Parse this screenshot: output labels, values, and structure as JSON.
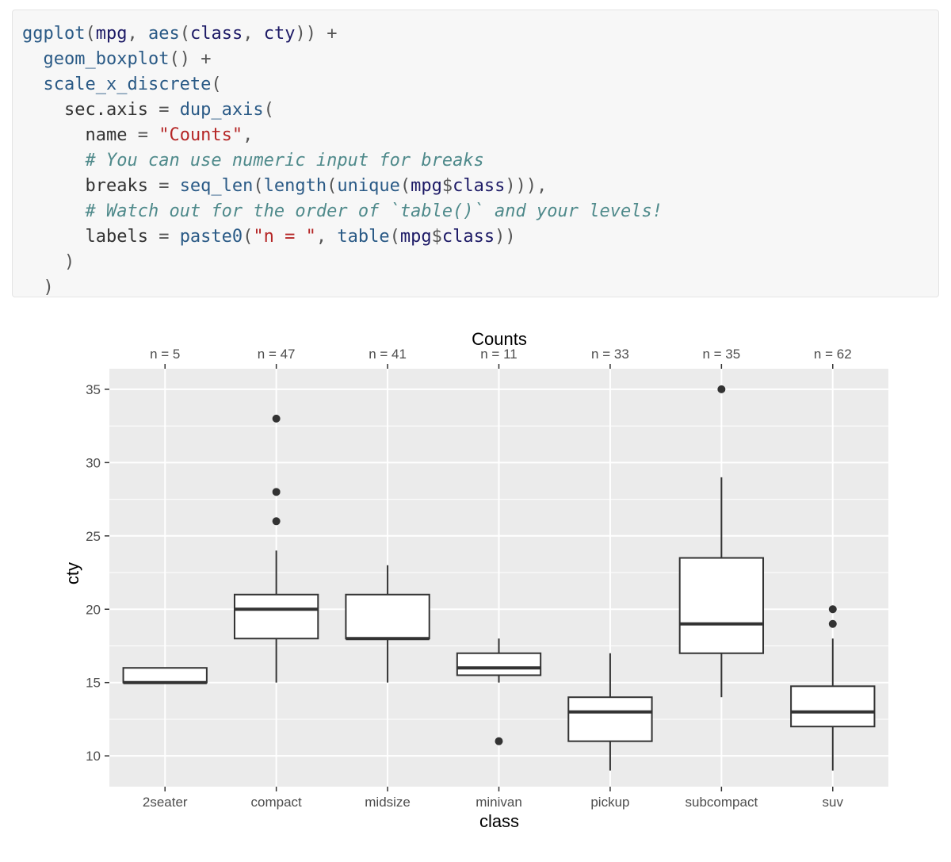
{
  "code": {
    "lines": [
      [
        [
          "ggplot",
          "fn"
        ],
        [
          "(",
          "op"
        ],
        [
          "mpg",
          "id"
        ],
        [
          ", ",
          "op"
        ],
        [
          "aes",
          "fn"
        ],
        [
          "(",
          "op"
        ],
        [
          "class",
          "id"
        ],
        [
          ", ",
          "op"
        ],
        [
          "cty",
          "id"
        ],
        [
          ")) +",
          "op"
        ]
      ],
      [
        [
          "  ",
          "op"
        ],
        [
          "geom_boxplot",
          "fn"
        ],
        [
          "() +",
          "op"
        ]
      ],
      [
        [
          "  ",
          "op"
        ],
        [
          "scale_x_discrete",
          "fn"
        ],
        [
          "(",
          "op"
        ]
      ],
      [
        [
          "    sec.axis ",
          "plain"
        ],
        [
          "= ",
          "op"
        ],
        [
          "dup_axis",
          "fn"
        ],
        [
          "(",
          "op"
        ]
      ],
      [
        [
          "      name ",
          "plain"
        ],
        [
          "= ",
          "op"
        ],
        [
          "\"Counts\"",
          "str"
        ],
        [
          ",",
          "op"
        ]
      ],
      [
        [
          "      ",
          "op"
        ],
        [
          "# You can use numeric input for breaks",
          "cm"
        ]
      ],
      [
        [
          "      breaks ",
          "plain"
        ],
        [
          "= ",
          "op"
        ],
        [
          "seq_len",
          "fn"
        ],
        [
          "(",
          "op"
        ],
        [
          "length",
          "fn"
        ],
        [
          "(",
          "op"
        ],
        [
          "unique",
          "fn"
        ],
        [
          "(",
          "op"
        ],
        [
          "mpg",
          "id"
        ],
        [
          "$",
          "op"
        ],
        [
          "class",
          "id"
        ],
        [
          "))),",
          "op"
        ]
      ],
      [
        [
          "      ",
          "op"
        ],
        [
          "# Watch out for the order of `table()` and your levels!",
          "cm"
        ]
      ],
      [
        [
          "      labels ",
          "plain"
        ],
        [
          "= ",
          "op"
        ],
        [
          "paste0",
          "fn"
        ],
        [
          "(",
          "op"
        ],
        [
          "\"n = \"",
          "str"
        ],
        [
          ", ",
          "op"
        ],
        [
          "table",
          "fn"
        ],
        [
          "(",
          "op"
        ],
        [
          "mpg",
          "id"
        ],
        [
          "$",
          "op"
        ],
        [
          "class",
          "id"
        ],
        [
          "))",
          "op"
        ]
      ],
      [
        [
          "    )",
          "op"
        ]
      ],
      [
        [
          "  )",
          "op"
        ]
      ]
    ]
  },
  "chart_data": {
    "type": "boxplot",
    "xlabel": "class",
    "ylabel": "cty",
    "secondary_axis_title": "Counts",
    "categories": [
      "2seater",
      "compact",
      "midsize",
      "minivan",
      "pickup",
      "subcompact",
      "suv"
    ],
    "secondary_labels": [
      "n = 5",
      "n = 47",
      "n = 41",
      "n = 11",
      "n = 33",
      "n = 35",
      "n = 62"
    ],
    "ylim": [
      7.9,
      36.4
    ],
    "yticks": [
      10,
      15,
      20,
      25,
      30,
      35
    ],
    "minor_yticks": [
      12.5,
      17.5,
      22.5,
      27.5,
      32.5
    ],
    "boxes": [
      {
        "class": "2seater",
        "lower_whisker": 15,
        "q1": 15,
        "median": 15,
        "q3": 16,
        "upper_whisker": 16,
        "outliers": []
      },
      {
        "class": "compact",
        "lower_whisker": 15,
        "q1": 18,
        "median": 20,
        "q3": 21,
        "upper_whisker": 24,
        "outliers": [
          26,
          28,
          33
        ]
      },
      {
        "class": "midsize",
        "lower_whisker": 15,
        "q1": 18,
        "median": 18,
        "q3": 21,
        "upper_whisker": 23,
        "outliers": []
      },
      {
        "class": "minivan",
        "lower_whisker": 15,
        "q1": 15.5,
        "median": 16,
        "q3": 17,
        "upper_whisker": 18,
        "outliers": [
          11
        ]
      },
      {
        "class": "pickup",
        "lower_whisker": 9,
        "q1": 11,
        "median": 13,
        "q3": 14,
        "upper_whisker": 17,
        "outliers": []
      },
      {
        "class": "subcompact",
        "lower_whisker": 14,
        "q1": 17,
        "median": 19,
        "q3": 23.5,
        "upper_whisker": 29,
        "outliers": [
          35
        ]
      },
      {
        "class": "suv",
        "lower_whisker": 9,
        "q1": 12,
        "median": 13,
        "q3": 14.75,
        "upper_whisker": 18,
        "outliers": [
          19,
          20
        ]
      }
    ],
    "grid": true,
    "panel_background": "#ebebeb",
    "grid_color": "#ffffff",
    "box_fill": "#ffffff",
    "box_stroke": "#333333",
    "outlier_color": "#333333",
    "text_color": "#4d4d4d",
    "title_color": "#000000"
  }
}
